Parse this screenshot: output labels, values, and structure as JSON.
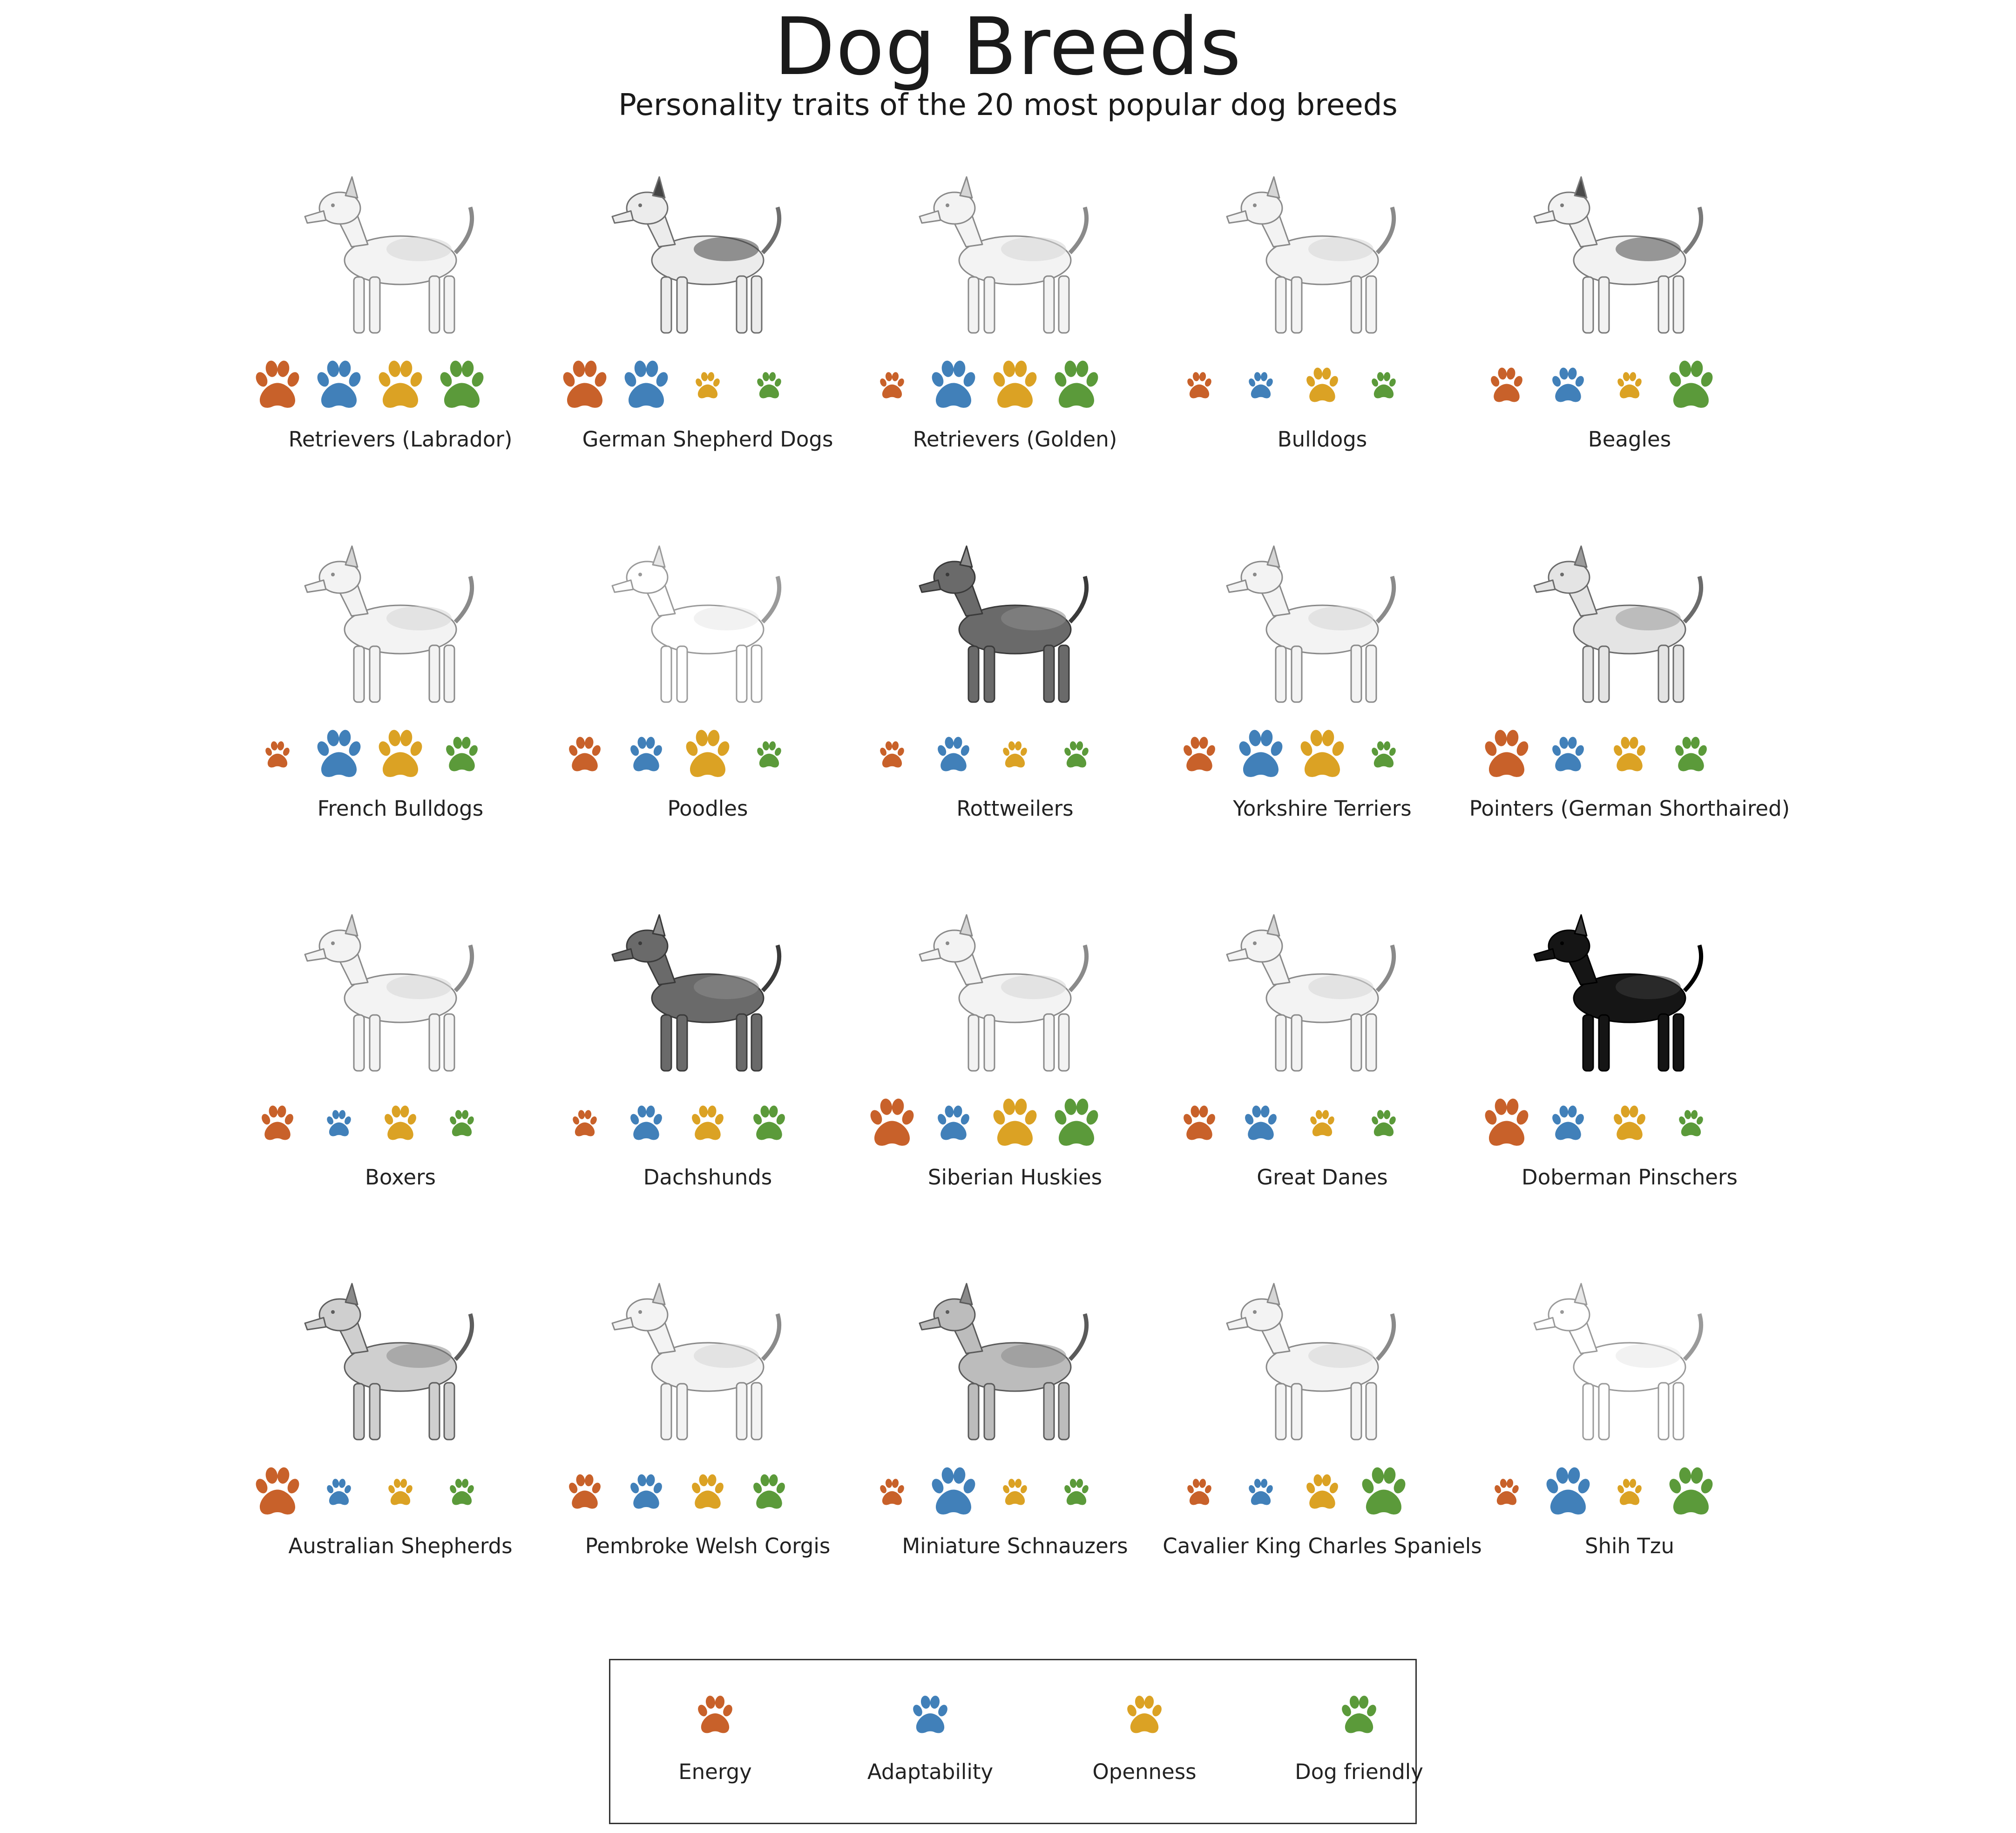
{
  "header": {
    "title": "Dog Breeds",
    "subtitle": "Personality traits of the 20 most popular dog breeds"
  },
  "chart_data": {
    "type": "table",
    "title": "Dog Breeds",
    "subtitle": "Personality traits of the 20 most popular dog breeds",
    "encoding": "paw-size",
    "scale": [
      1,
      3
    ],
    "traits": [
      {
        "name": "Energy",
        "color": "#c8612a"
      },
      {
        "name": "Adaptability",
        "color": "#4180b9"
      },
      {
        "name": "Openness",
        "color": "#dba224"
      },
      {
        "name": "Dog friendly",
        "color": "#5b9a3a"
      }
    ],
    "breeds": [
      {
        "name": "Retrievers (Labrador)",
        "values": [
          3,
          3,
          3,
          3
        ],
        "coat": "light"
      },
      {
        "name": "German Shepherd Dogs",
        "values": [
          3,
          3,
          1,
          1
        ],
        "coat": "tan"
      },
      {
        "name": "Retrievers (Golden)",
        "values": [
          1,
          3,
          3,
          3
        ],
        "coat": "light"
      },
      {
        "name": "Bulldogs",
        "values": [
          1,
          1,
          2,
          1
        ],
        "coat": "light"
      },
      {
        "name": "Beagles",
        "values": [
          2,
          2,
          1,
          3
        ],
        "coat": "tricolor"
      },
      {
        "name": "French Bulldogs",
        "values": [
          1,
          3,
          3,
          2
        ],
        "coat": "light"
      },
      {
        "name": "Poodles",
        "values": [
          2,
          2,
          3,
          1
        ],
        "coat": "white"
      },
      {
        "name": "Rottweilers",
        "values": [
          1,
          2,
          1,
          1
        ],
        "coat": "dark"
      },
      {
        "name": "Yorkshire Terriers",
        "values": [
          2,
          3,
          3,
          1
        ],
        "coat": "light"
      },
      {
        "name": "Pointers (German Shorthaired)",
        "values": [
          3,
          2,
          2,
          2
        ],
        "coat": "speckled"
      },
      {
        "name": "Boxers",
        "values": [
          2,
          1,
          2,
          1
        ],
        "coat": "light"
      },
      {
        "name": "Dachshunds",
        "values": [
          1,
          2,
          2,
          2
        ],
        "coat": "dark"
      },
      {
        "name": "Siberian Huskies",
        "values": [
          3,
          2,
          3,
          3
        ],
        "coat": "light"
      },
      {
        "name": "Great Danes",
        "values": [
          2,
          2,
          1,
          1
        ],
        "coat": "light"
      },
      {
        "name": "Doberman Pinschers",
        "values": [
          3,
          2,
          2,
          1
        ],
        "coat": "black"
      },
      {
        "name": "Australian Shepherds",
        "values": [
          3,
          1,
          1,
          1
        ],
        "coat": "merle"
      },
      {
        "name": "Pembroke Welsh Corgis",
        "values": [
          2,
          2,
          2,
          2
        ],
        "coat": "light"
      },
      {
        "name": "Miniature Schnauzers",
        "values": [
          1,
          3,
          1,
          1
        ],
        "coat": "gray"
      },
      {
        "name": "Cavalier King Charles Spaniels",
        "values": [
          1,
          1,
          2,
          3
        ],
        "coat": "light"
      },
      {
        "name": "Shih Tzu",
        "values": [
          1,
          3,
          1,
          3
        ],
        "coat": "white"
      }
    ]
  },
  "legend": {
    "items": [
      {
        "label": "Energy",
        "color": "#c8612a"
      },
      {
        "label": "Adaptability",
        "color": "#4180b9"
      },
      {
        "label": "Openness",
        "color": "#dba224"
      },
      {
        "label": "Dog friendly",
        "color": "#5b9a3a"
      }
    ]
  },
  "icons": {
    "paw": "paw-icon",
    "dog": "dog-illustration-icon"
  }
}
